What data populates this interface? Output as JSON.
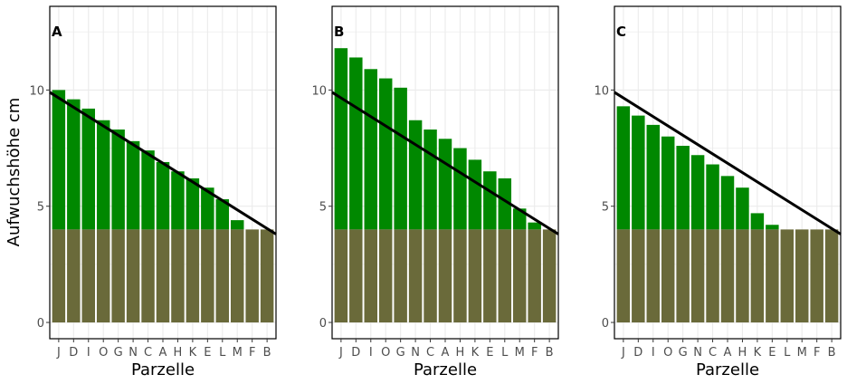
{
  "chart_data": {
    "type": "bar",
    "ylabel": "Aufwuchshöhe cm",
    "xlabel": "Parzelle",
    "categories": [
      "J",
      "D",
      "I",
      "O",
      "G",
      "N",
      "C",
      "A",
      "H",
      "K",
      "E",
      "L",
      "M",
      "F",
      "B"
    ],
    "ylim": [
      -0.7,
      13.6
    ],
    "yticks": [
      0,
      5,
      10
    ],
    "base_value": 4,
    "colors": {
      "growth": "#008800",
      "base": "#6a6a3a",
      "grid": "#ebebeb",
      "line": "#000000"
    },
    "panels": [
      {
        "tag": "A",
        "values": [
          10.0,
          9.6,
          9.2,
          8.7,
          8.3,
          7.8,
          7.4,
          6.9,
          6.5,
          6.2,
          5.8,
          5.3,
          4.4,
          4.0,
          4.0
        ],
        "line": [
          9.9,
          3.8
        ]
      },
      {
        "tag": "B",
        "values": [
          11.8,
          11.4,
          10.9,
          10.5,
          10.1,
          8.7,
          8.3,
          7.9,
          7.5,
          7.0,
          6.5,
          6.2,
          4.9,
          4.3,
          4.0
        ],
        "line": [
          9.9,
          3.8
        ]
      },
      {
        "tag": "C",
        "values": [
          9.3,
          8.9,
          8.5,
          8.0,
          7.6,
          7.2,
          6.8,
          6.3,
          5.8,
          4.7,
          4.2,
          4.0,
          4.0,
          4.0,
          4.0
        ],
        "line": [
          9.9,
          3.8
        ]
      }
    ]
  }
}
